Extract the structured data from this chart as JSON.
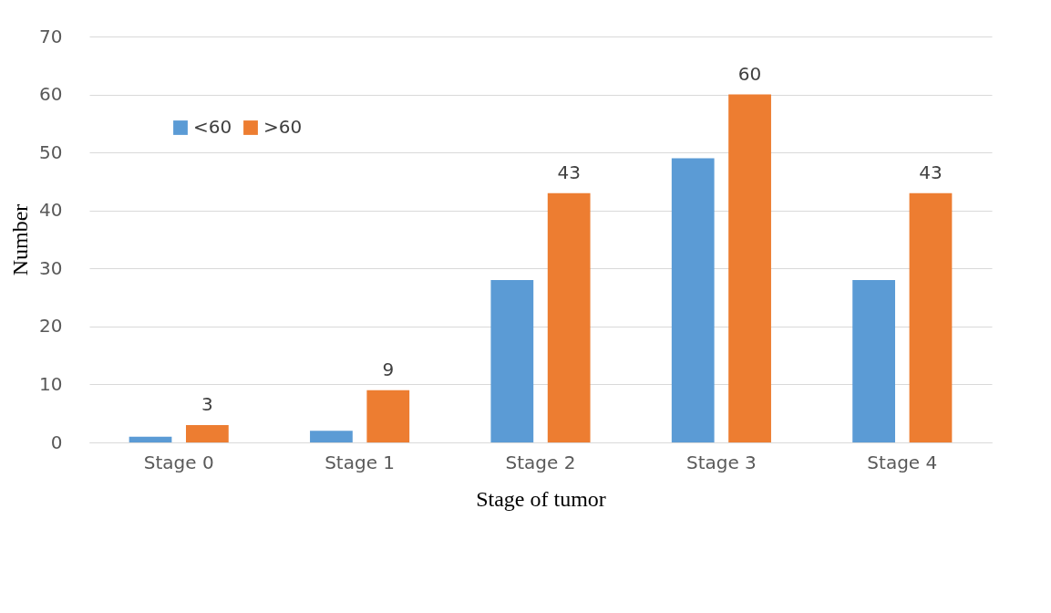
{
  "chart_data": {
    "type": "bar",
    "xlabel": "Stage of tumor",
    "ylabel": "Number",
    "categories": [
      "Stage 0",
      "Stage 1",
      "Stage 2",
      "Stage 3",
      "Stage 4"
    ],
    "series": [
      {
        "name": "<60",
        "color": "#5b9bd5",
        "values": [
          1,
          2,
          28,
          49,
          28
        ]
      },
      {
        "name": ">60",
        "color": "#ed7d31",
        "values": [
          3,
          9,
          43,
          60,
          43
        ],
        "value_labels": [
          "3",
          "9",
          "43",
          "60",
          "43"
        ]
      }
    ],
    "ylim": [
      0,
      70
    ],
    "yticks": [
      0,
      10,
      20,
      30,
      40,
      50,
      60,
      70
    ],
    "grid": "y",
    "legend": "top left"
  }
}
